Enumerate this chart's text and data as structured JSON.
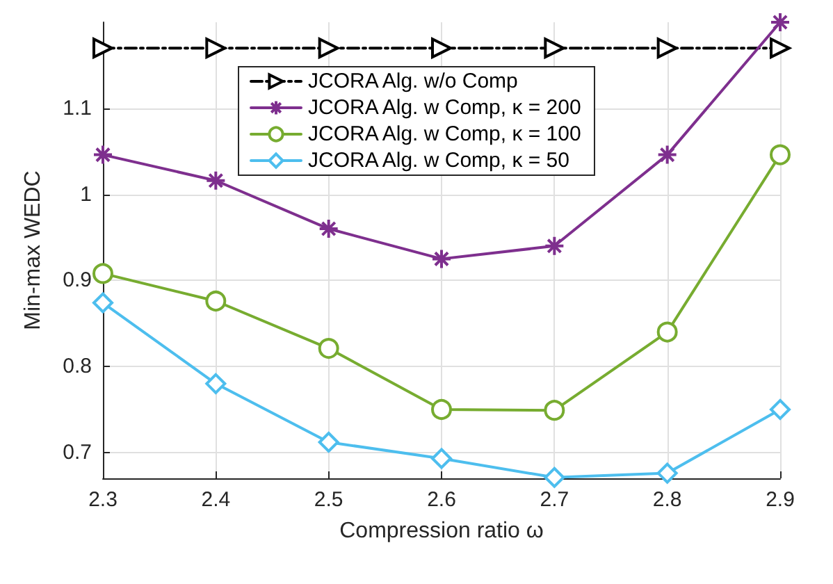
{
  "chart_data": {
    "type": "line",
    "xlabel": "Compression ratio ω",
    "ylabel": "Min-max WEDC",
    "x": [
      2.3,
      2.4,
      2.5,
      2.6,
      2.7,
      2.8,
      2.9
    ],
    "xlim": [
      2.3,
      2.9
    ],
    "xticks": [
      2.3,
      2.4,
      2.5,
      2.6,
      2.7,
      2.8,
      2.9
    ],
    "ylim": [
      0.67,
      1.2
    ],
    "yticks": [
      0.7,
      0.8,
      0.9,
      1,
      1.1
    ],
    "grid": true,
    "legend": "top",
    "series": [
      {
        "name": "JCORA Alg. w/o Comp",
        "color": "#000000",
        "marker": "triangle",
        "line_style": "dashed",
        "values": [
          1.17,
          1.17,
          1.17,
          1.17,
          1.17,
          1.17,
          1.17
        ]
      },
      {
        "name": "JCORA Alg. w Comp, κ = 200",
        "color": "#7e2f8e",
        "marker": "cross",
        "line_style": "solid",
        "values": [
          1.046,
          1.016,
          0.96,
          0.925,
          0.94,
          1.046,
          1.2
        ]
      },
      {
        "name": "JCORA Alg. w Comp, κ = 100",
        "color": "#77ac30",
        "marker": "circle",
        "line_style": "solid",
        "values": [
          0.908,
          0.876,
          0.821,
          0.75,
          0.749,
          0.84,
          1.046
        ]
      },
      {
        "name": "JCORA Alg. w Comp, κ = 50",
        "color": "#4dbeee",
        "marker": "diamond",
        "line_style": "solid",
        "values": [
          0.874,
          0.78,
          0.712,
          0.693,
          0.671,
          0.676,
          0.75
        ]
      }
    ]
  }
}
